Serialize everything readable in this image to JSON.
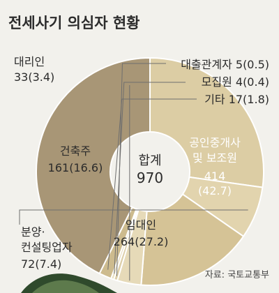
{
  "chart_data": {
    "type": "pie",
    "title": "전세사기 의심자 현황",
    "center_label": "합계",
    "center_value": "970",
    "source": "자료: 국토교통부",
    "slices": [
      {
        "name": "공인중개사 및 보조원",
        "lines": [
          "공인중개사",
          "및 보조원"
        ],
        "value": 414,
        "percent": 42.7,
        "value_text": "414",
        "percent_text": "(42.7)",
        "color": "#a89676",
        "text_color": "#ffffff"
      },
      {
        "name": "임대인",
        "lines": [
          "임대인"
        ],
        "value": 264,
        "percent": 27.2,
        "value_text": "264(27.2)",
        "color": "#dccda4",
        "text_color": "#2b2b2b"
      },
      {
        "name": "분양·컨설팅업자",
        "lines": [
          "분양·",
          "컨설팅업자"
        ],
        "value": 72,
        "percent": 7.4,
        "value_text": "72(7.4)",
        "color": "#e2d4ae",
        "text_color": "#2b2b2b"
      },
      {
        "name": "건축주",
        "lines": [
          "건축주"
        ],
        "value": 161,
        "percent": 16.6,
        "value_text": "161(16.6)",
        "color": "#d5c396",
        "text_color": "#2b2b2b"
      },
      {
        "name": "대리인",
        "lines": [
          "대리인"
        ],
        "value": 33,
        "percent": 3.4,
        "value_text": "33(3.4)",
        "color": "#e6dab8",
        "text_color": "#2b2b2b"
      },
      {
        "name": "대출관계자",
        "lines": [
          "대출관계자"
        ],
        "value": 5,
        "percent": 0.5,
        "value_text": "5(0.5)",
        "color": "#ddcfa9",
        "text_color": "#2b2b2b"
      },
      {
        "name": "모집원",
        "lines": [
          "모집원"
        ],
        "value": 4,
        "percent": 0.4,
        "value_text": "4(0.4)",
        "color": "#e8dec0",
        "text_color": "#2b2b2b"
      },
      {
        "name": "기타",
        "lines": [
          "기타"
        ],
        "value": 17,
        "percent": 1.8,
        "value_text": "17(1.8)",
        "color": "#cdbb8e",
        "text_color": "#2b2b2b"
      }
    ]
  },
  "colors": {
    "background": "#f2f1ec",
    "hill_dark": "#2f4a2c",
    "hill_light": "#5d7a4c"
  }
}
